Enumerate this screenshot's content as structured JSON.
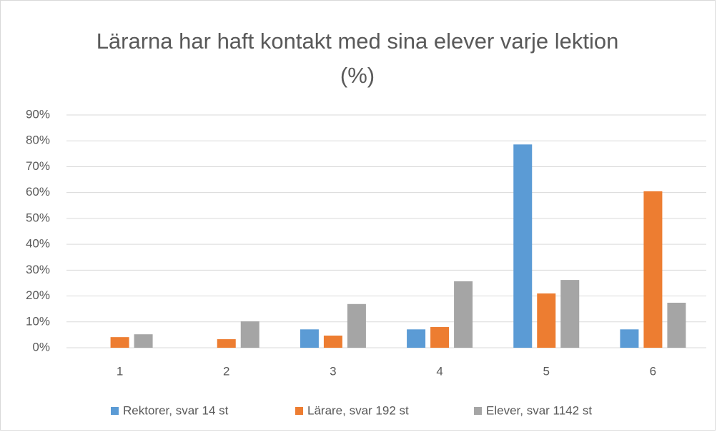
{
  "chart_data": {
    "type": "bar",
    "title": "Lärarna har haft kontakt med sina elever varje lektion (%)",
    "categories": [
      "1",
      "2",
      "3",
      "4",
      "5",
      "6"
    ],
    "series": [
      {
        "name": "Rektorer, svar 14 st",
        "color": "#5b9bd5",
        "values": [
          0,
          0,
          7.1,
          7.1,
          78.6,
          7.1
        ]
      },
      {
        "name": "Lärare, svar 192 st",
        "color": "#ed7d31",
        "values": [
          4.1,
          3.3,
          4.7,
          8.0,
          21,
          60.5
        ]
      },
      {
        "name": "Elever, svar 1142 st",
        "color": "#a5a5a5",
        "values": [
          5.2,
          10.2,
          16.9,
          25.7,
          26.2,
          17.4
        ]
      }
    ],
    "ylim": [
      0,
      90
    ],
    "yticks": [
      {
        "value": 0,
        "label": "0%"
      },
      {
        "value": 10,
        "label": "10%"
      },
      {
        "value": 20,
        "label": "20%"
      },
      {
        "value": 30,
        "label": "30%"
      },
      {
        "value": 40,
        "label": "40%"
      },
      {
        "value": 50,
        "label": "50%"
      },
      {
        "value": 60,
        "label": "60%"
      },
      {
        "value": 70,
        "label": "70%"
      },
      {
        "value": 80,
        "label": "80%"
      },
      {
        "value": 90,
        "label": "90%"
      }
    ],
    "grid": true,
    "legend": "bottom"
  }
}
